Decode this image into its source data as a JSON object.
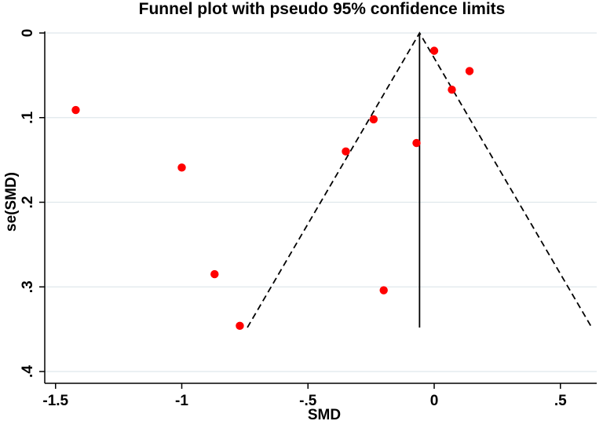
{
  "chart_data": {
    "type": "scatter",
    "title": "Funnel plot with pseudo 95% confidence limits",
    "xlabel": "SMD",
    "ylabel": "se(SMD)",
    "xlim": [
      -1.55,
      0.63
    ],
    "ylim": [
      0,
      0.4
    ],
    "y_reversed": true,
    "grid": true,
    "x_ticks": [
      -1.5,
      -1,
      -0.5,
      0,
      0.5
    ],
    "x_tick_labels": [
      "-1.5",
      "-1",
      "-.5",
      "0",
      ".5"
    ],
    "y_ticks": [
      0,
      0.1,
      0.2,
      0.3,
      0.4
    ],
    "y_tick_labels": [
      "0",
      ".1",
      ".2",
      ".3",
      ".4"
    ],
    "pooled_estimate": -0.058,
    "max_se": 0.348,
    "marker_color": "#ff0000",
    "points": [
      {
        "x": -1.42,
        "y": 0.091
      },
      {
        "x": -1.0,
        "y": 0.159
      },
      {
        "x": -0.87,
        "y": 0.285
      },
      {
        "x": -0.77,
        "y": 0.346
      },
      {
        "x": -0.35,
        "y": 0.14
      },
      {
        "x": -0.24,
        "y": 0.102
      },
      {
        "x": -0.2,
        "y": 0.304
      },
      {
        "x": -0.07,
        "y": 0.13
      },
      {
        "x": 0.0,
        "y": 0.021
      },
      {
        "x": 0.07,
        "y": 0.067
      },
      {
        "x": 0.14,
        "y": 0.045
      }
    ]
  }
}
